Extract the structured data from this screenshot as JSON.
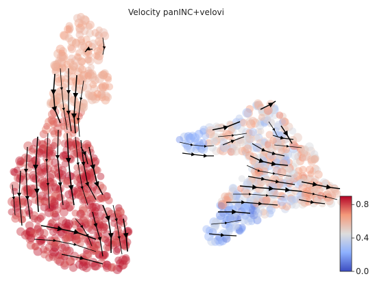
{
  "chart_data": {
    "type": "scatter",
    "title": "Velocity panINC+velovi",
    "xlabel": "",
    "ylabel": "",
    "grid": false,
    "axes_visible": false,
    "overlay": "velocity streamlines with arrowheads",
    "colorbar": {
      "ticks": [
        0.0,
        0.4,
        0.8
      ],
      "tick_labels": [
        "0.0",
        "0.4",
        "0.8"
      ],
      "range": [
        0.0,
        0.9
      ],
      "colormap": "coolwarm",
      "low_color": "#3b4cc0",
      "mid_color": "#dddddd",
      "high_color": "#b40426"
    }
  }
}
